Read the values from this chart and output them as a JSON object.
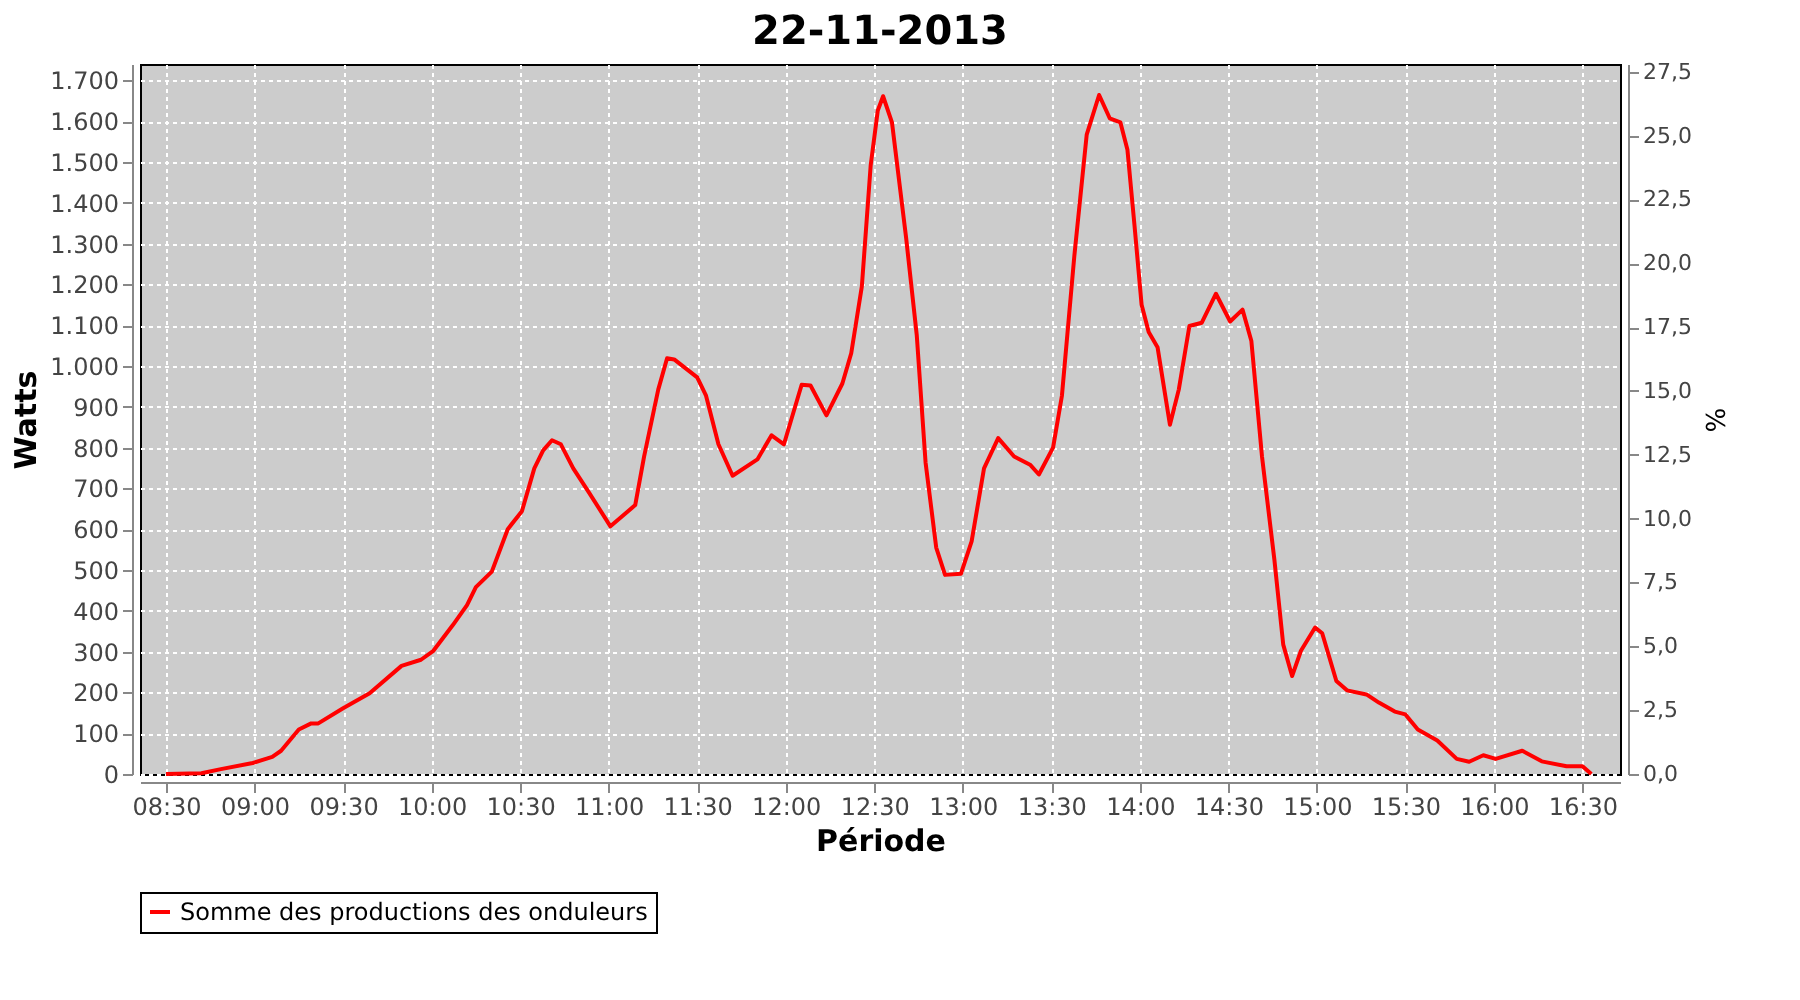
{
  "chart_data": {
    "type": "line",
    "title": "22-11-2013",
    "xlabel": "Période",
    "ylabel": "Watts",
    "y2label": "%",
    "xlim": [
      8.353,
      16.712
    ],
    "xticks": [
      {
        "value": 8.5,
        "label": "08:30"
      },
      {
        "value": 9.0,
        "label": "09:00"
      },
      {
        "value": 9.5,
        "label": "09:30"
      },
      {
        "value": 10.0,
        "label": "10:00"
      },
      {
        "value": 10.5,
        "label": "10:30"
      },
      {
        "value": 11.0,
        "label": "11:00"
      },
      {
        "value": 11.5,
        "label": "11:30"
      },
      {
        "value": 12.0,
        "label": "12:00"
      },
      {
        "value": 12.5,
        "label": "12:30"
      },
      {
        "value": 13.0,
        "label": "13:00"
      },
      {
        "value": 13.5,
        "label": "13:30"
      },
      {
        "value": 14.0,
        "label": "14:00"
      },
      {
        "value": 14.5,
        "label": "14:30"
      },
      {
        "value": 15.0,
        "label": "15:00"
      },
      {
        "value": 15.5,
        "label": "15:30"
      },
      {
        "value": 16.0,
        "label": "16:00"
      },
      {
        "value": 16.5,
        "label": "16:30"
      }
    ],
    "ylim": [
      0,
      1740
    ],
    "yticks": [
      0,
      100,
      200,
      300,
      400,
      500,
      600,
      700,
      800,
      900,
      {
        "value": 1000,
        "label": "1.000"
      },
      {
        "value": 1100,
        "label": "1.100"
      },
      {
        "value": 1200,
        "label": "1.200"
      },
      {
        "value": 1300,
        "label": "1.300"
      },
      {
        "value": 1400,
        "label": "1.400"
      },
      {
        "value": 1500,
        "label": "1.500"
      },
      {
        "value": 1600,
        "label": "1.600"
      },
      {
        "value": 1700,
        "label": "1.700"
      }
    ],
    "y2lim": [
      0,
      27.8
    ],
    "y2ticks": [
      {
        "value": 0,
        "label": "0,0"
      },
      {
        "value": 2.5,
        "label": "2,5"
      },
      {
        "value": 5,
        "label": "5,0"
      },
      {
        "value": 7.5,
        "label": "7,5"
      },
      {
        "value": 10,
        "label": "10,0"
      },
      {
        "value": 12.5,
        "label": "12,5"
      },
      {
        "value": 15,
        "label": "15,0"
      },
      {
        "value": 17.5,
        "label": "17,5"
      },
      {
        "value": 20,
        "label": "20,0"
      },
      {
        "value": 22.5,
        "label": "22,5"
      },
      {
        "value": 25,
        "label": "25,0"
      },
      {
        "value": 27.5,
        "label": "27,5"
      }
    ],
    "grid": true,
    "legend": "bottom",
    "marker": "none",
    "line_style": "solid",
    "series": [
      {
        "name": "Somme des productions des onduleurs",
        "color": "#ff0000",
        "x": [
          8.5,
          8.7,
          8.81,
          8.99,
          9.1,
          9.15,
          9.25,
          9.32,
          9.36,
          9.5,
          9.65,
          9.83,
          9.94,
          10.01,
          10.12,
          10.2,
          10.25,
          10.34,
          10.43,
          10.51,
          10.58,
          10.63,
          10.68,
          10.73,
          10.8,
          10.89,
          11.01,
          11.15,
          11.2,
          11.28,
          11.33,
          11.37,
          11.5,
          11.55,
          11.62,
          11.7,
          11.84,
          11.92,
          11.99,
          12.09,
          12.14,
          12.23,
          12.32,
          12.37,
          12.43,
          12.48,
          12.52,
          12.55,
          12.6,
          12.68,
          12.74,
          12.79,
          12.85,
          12.9,
          12.99,
          13.05,
          13.12,
          13.2,
          13.29,
          13.38,
          13.43,
          13.51,
          13.56,
          13.63,
          13.7,
          13.77,
          13.83,
          13.89,
          13.93,
          13.97,
          14.01,
          14.05,
          14.1,
          14.17,
          14.22,
          14.28,
          14.35,
          14.43,
          14.51,
          14.58,
          14.63,
          14.69,
          14.76,
          14.81,
          14.86,
          14.91,
          14.99,
          15.03,
          15.11,
          15.17,
          15.28,
          15.35,
          15.44,
          15.5,
          15.57,
          15.68,
          15.79,
          15.86,
          15.94,
          16.01,
          16.16,
          16.27,
          16.41,
          16.5,
          16.55
        ],
        "values": [
          0,
          2,
          12,
          27,
          42,
          57,
          109,
          124,
          124,
          161,
          198,
          265,
          280,
          302,
          365,
          414,
          458,
          496,
          600,
          644,
          749,
          793,
          818,
          808,
          749,
          689,
          607,
          659,
          778,
          942,
          1019,
          1016,
          972,
          927,
          808,
          731,
          771,
          830,
          808,
          954,
          952,
          879,
          957,
          1031,
          1195,
          1492,
          1626,
          1661,
          1597,
          1314,
          1076,
          763,
          555,
          488,
          491,
          570,
          749,
          823,
          778,
          758,
          734,
          800,
          927,
          1269,
          1567,
          1664,
          1607,
          1597,
          1530,
          1344,
          1150,
          1083,
          1046,
          856,
          942,
          1098,
          1106,
          1177,
          1109,
          1138,
          1061,
          778,
          525,
          317,
          240,
          302,
          359,
          345,
          228,
          205,
          195,
          175,
          153,
          146,
          109,
          82,
          37,
          30,
          46,
          37,
          57,
          31,
          19,
          19,
          0
        ]
      }
    ]
  }
}
